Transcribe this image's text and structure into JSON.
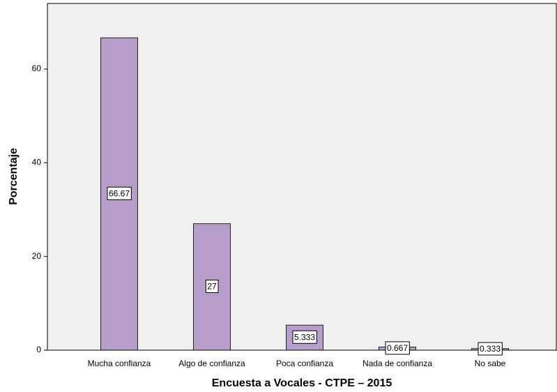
{
  "chart_data": {
    "type": "bar",
    "x_label": "Encuesta a Vocales - CTPE – 2015",
    "y_label": "Porcentaje",
    "categories": [
      "Mucha confianza",
      "Algo de confianza",
      "Poca confianza",
      "Nada de confianza",
      "No sabe"
    ],
    "values": [
      66.67,
      27,
      5.333,
      0.667,
      0.333
    ],
    "color": "#b89cc9",
    "ylim": [
      0,
      74
    ],
    "yticks": [
      0,
      20,
      40,
      60
    ]
  }
}
